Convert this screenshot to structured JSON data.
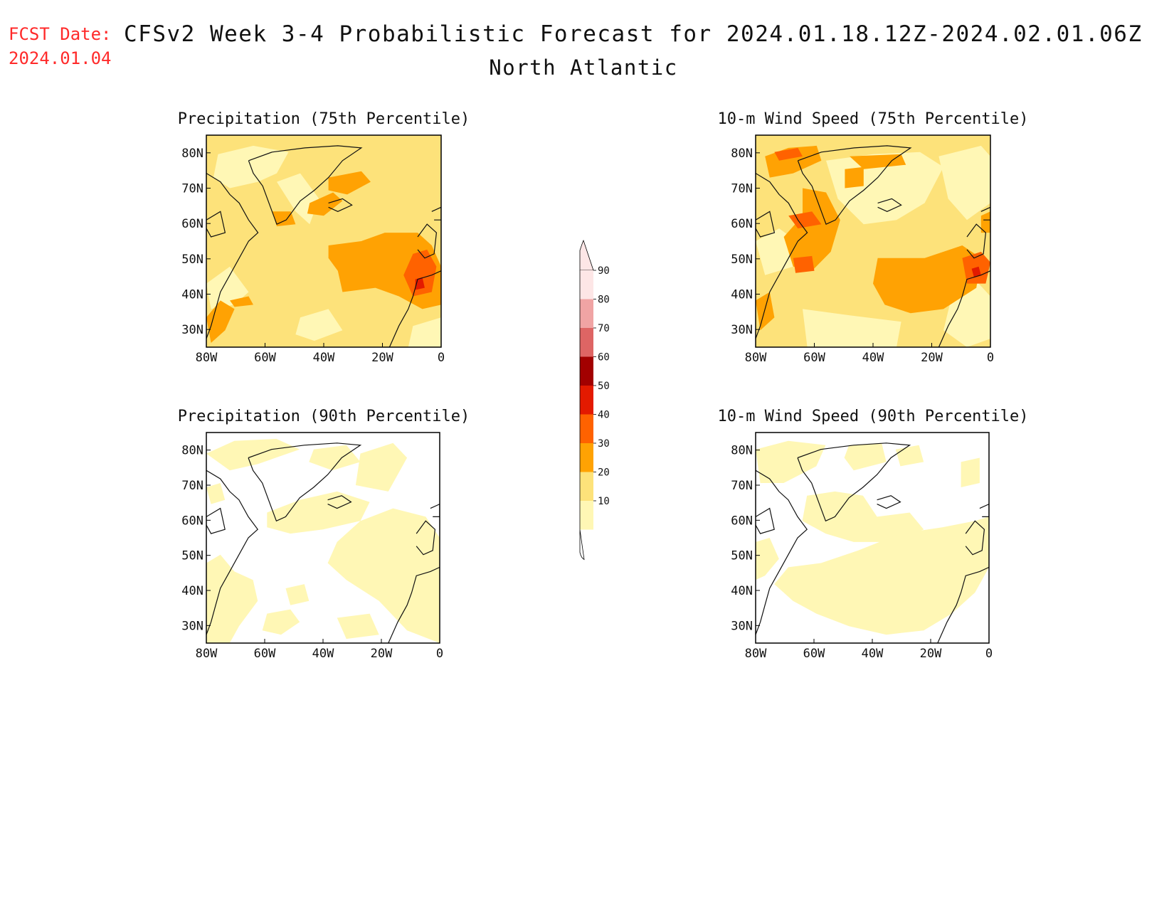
{
  "header": {
    "fcst_label": "FCST Date:",
    "fcst_date": "2024.01.04",
    "title": "CFSv2 Week 3-4 Probabilistic Forecast for 2024.01.18.12Z-2024.02.01.06Z",
    "region": "North Atlantic"
  },
  "colors": {
    "lt10": "#ffffff",
    "10-20": "#fff7b5",
    "20-30": "#fde27a",
    "30-40": "#ffa203",
    "40-50": "#ff6200",
    "50-60": "#e31a00",
    "60-70": "#a20000",
    "70-80": "#de6564",
    "80-90": "#f0a4a4",
    "gt90": "#fde6e6"
  },
  "colorbar": {
    "levels": [
      10,
      20,
      30,
      40,
      50,
      60,
      70,
      80,
      90
    ],
    "labels": [
      "10",
      "20",
      "30",
      "40",
      "50",
      "60",
      "70",
      "80",
      "90"
    ]
  },
  "axes": {
    "lon_labels": [
      "80W",
      "60W",
      "40W",
      "20W",
      "0"
    ],
    "lat_labels": [
      "80N",
      "70N",
      "60N",
      "50N",
      "40N",
      "30N"
    ],
    "lon_range": [
      -80,
      0
    ],
    "lat_range": [
      25,
      85
    ]
  },
  "panels": [
    {
      "id": "precip75",
      "title": "Precipitation (75th Percentile)",
      "background_category": "20-30"
    },
    {
      "id": "wind75",
      "title": "10-m Wind Speed (75th Percentile)",
      "background_category": "20-30"
    },
    {
      "id": "precip90",
      "title": "Precipitation (90th Percentile)",
      "background_category": "lt10"
    },
    {
      "id": "wind90",
      "title": "10-m Wind Speed (90th Percentile)",
      "background_category": "lt10"
    }
  ]
}
